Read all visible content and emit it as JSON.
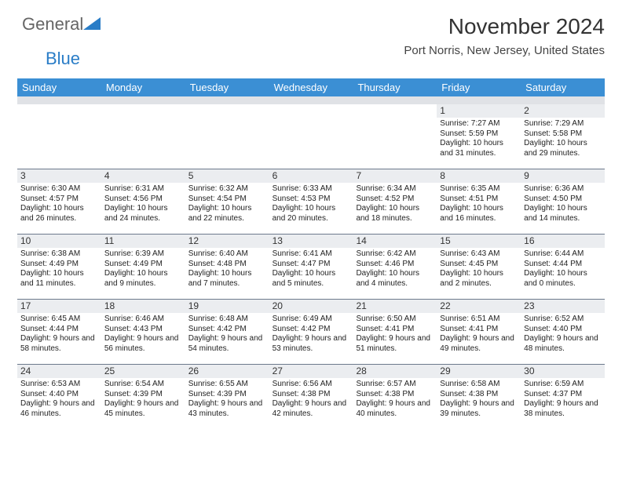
{
  "logo": {
    "part1": "General",
    "part2": "Blue"
  },
  "title": "November 2024",
  "subtitle": "Port Norris, New Jersey, United States",
  "colors": {
    "header_bg": "#3b8fd4",
    "header_fg": "#ffffff",
    "subbar_bg": "#e0e2e6",
    "week_border": "#6d7a8c",
    "daynum_bg": "#ebedf0",
    "text": "#222222",
    "title_color": "#333333"
  },
  "day_headers": [
    "Sunday",
    "Monday",
    "Tuesday",
    "Wednesday",
    "Thursday",
    "Friday",
    "Saturday"
  ],
  "weeks": [
    [
      {
        "empty": true
      },
      {
        "empty": true
      },
      {
        "empty": true
      },
      {
        "empty": true
      },
      {
        "empty": true
      },
      {
        "num": "1",
        "sunrise": "Sunrise: 7:27 AM",
        "sunset": "Sunset: 5:59 PM",
        "daylight": "Daylight: 10 hours and 31 minutes."
      },
      {
        "num": "2",
        "sunrise": "Sunrise: 7:29 AM",
        "sunset": "Sunset: 5:58 PM",
        "daylight": "Daylight: 10 hours and 29 minutes."
      }
    ],
    [
      {
        "num": "3",
        "sunrise": "Sunrise: 6:30 AM",
        "sunset": "Sunset: 4:57 PM",
        "daylight": "Daylight: 10 hours and 26 minutes."
      },
      {
        "num": "4",
        "sunrise": "Sunrise: 6:31 AM",
        "sunset": "Sunset: 4:56 PM",
        "daylight": "Daylight: 10 hours and 24 minutes."
      },
      {
        "num": "5",
        "sunrise": "Sunrise: 6:32 AM",
        "sunset": "Sunset: 4:54 PM",
        "daylight": "Daylight: 10 hours and 22 minutes."
      },
      {
        "num": "6",
        "sunrise": "Sunrise: 6:33 AM",
        "sunset": "Sunset: 4:53 PM",
        "daylight": "Daylight: 10 hours and 20 minutes."
      },
      {
        "num": "7",
        "sunrise": "Sunrise: 6:34 AM",
        "sunset": "Sunset: 4:52 PM",
        "daylight": "Daylight: 10 hours and 18 minutes."
      },
      {
        "num": "8",
        "sunrise": "Sunrise: 6:35 AM",
        "sunset": "Sunset: 4:51 PM",
        "daylight": "Daylight: 10 hours and 16 minutes."
      },
      {
        "num": "9",
        "sunrise": "Sunrise: 6:36 AM",
        "sunset": "Sunset: 4:50 PM",
        "daylight": "Daylight: 10 hours and 14 minutes."
      }
    ],
    [
      {
        "num": "10",
        "sunrise": "Sunrise: 6:38 AM",
        "sunset": "Sunset: 4:49 PM",
        "daylight": "Daylight: 10 hours and 11 minutes."
      },
      {
        "num": "11",
        "sunrise": "Sunrise: 6:39 AM",
        "sunset": "Sunset: 4:49 PM",
        "daylight": "Daylight: 10 hours and 9 minutes."
      },
      {
        "num": "12",
        "sunrise": "Sunrise: 6:40 AM",
        "sunset": "Sunset: 4:48 PM",
        "daylight": "Daylight: 10 hours and 7 minutes."
      },
      {
        "num": "13",
        "sunrise": "Sunrise: 6:41 AM",
        "sunset": "Sunset: 4:47 PM",
        "daylight": "Daylight: 10 hours and 5 minutes."
      },
      {
        "num": "14",
        "sunrise": "Sunrise: 6:42 AM",
        "sunset": "Sunset: 4:46 PM",
        "daylight": "Daylight: 10 hours and 4 minutes."
      },
      {
        "num": "15",
        "sunrise": "Sunrise: 6:43 AM",
        "sunset": "Sunset: 4:45 PM",
        "daylight": "Daylight: 10 hours and 2 minutes."
      },
      {
        "num": "16",
        "sunrise": "Sunrise: 6:44 AM",
        "sunset": "Sunset: 4:44 PM",
        "daylight": "Daylight: 10 hours and 0 minutes."
      }
    ],
    [
      {
        "num": "17",
        "sunrise": "Sunrise: 6:45 AM",
        "sunset": "Sunset: 4:44 PM",
        "daylight": "Daylight: 9 hours and 58 minutes."
      },
      {
        "num": "18",
        "sunrise": "Sunrise: 6:46 AM",
        "sunset": "Sunset: 4:43 PM",
        "daylight": "Daylight: 9 hours and 56 minutes."
      },
      {
        "num": "19",
        "sunrise": "Sunrise: 6:48 AM",
        "sunset": "Sunset: 4:42 PM",
        "daylight": "Daylight: 9 hours and 54 minutes."
      },
      {
        "num": "20",
        "sunrise": "Sunrise: 6:49 AM",
        "sunset": "Sunset: 4:42 PM",
        "daylight": "Daylight: 9 hours and 53 minutes."
      },
      {
        "num": "21",
        "sunrise": "Sunrise: 6:50 AM",
        "sunset": "Sunset: 4:41 PM",
        "daylight": "Daylight: 9 hours and 51 minutes."
      },
      {
        "num": "22",
        "sunrise": "Sunrise: 6:51 AM",
        "sunset": "Sunset: 4:41 PM",
        "daylight": "Daylight: 9 hours and 49 minutes."
      },
      {
        "num": "23",
        "sunrise": "Sunrise: 6:52 AM",
        "sunset": "Sunset: 4:40 PM",
        "daylight": "Daylight: 9 hours and 48 minutes."
      }
    ],
    [
      {
        "num": "24",
        "sunrise": "Sunrise: 6:53 AM",
        "sunset": "Sunset: 4:40 PM",
        "daylight": "Daylight: 9 hours and 46 minutes."
      },
      {
        "num": "25",
        "sunrise": "Sunrise: 6:54 AM",
        "sunset": "Sunset: 4:39 PM",
        "daylight": "Daylight: 9 hours and 45 minutes."
      },
      {
        "num": "26",
        "sunrise": "Sunrise: 6:55 AM",
        "sunset": "Sunset: 4:39 PM",
        "daylight": "Daylight: 9 hours and 43 minutes."
      },
      {
        "num": "27",
        "sunrise": "Sunrise: 6:56 AM",
        "sunset": "Sunset: 4:38 PM",
        "daylight": "Daylight: 9 hours and 42 minutes."
      },
      {
        "num": "28",
        "sunrise": "Sunrise: 6:57 AM",
        "sunset": "Sunset: 4:38 PM",
        "daylight": "Daylight: 9 hours and 40 minutes."
      },
      {
        "num": "29",
        "sunrise": "Sunrise: 6:58 AM",
        "sunset": "Sunset: 4:38 PM",
        "daylight": "Daylight: 9 hours and 39 minutes."
      },
      {
        "num": "30",
        "sunrise": "Sunrise: 6:59 AM",
        "sunset": "Sunset: 4:37 PM",
        "daylight": "Daylight: 9 hours and 38 minutes."
      }
    ]
  ]
}
